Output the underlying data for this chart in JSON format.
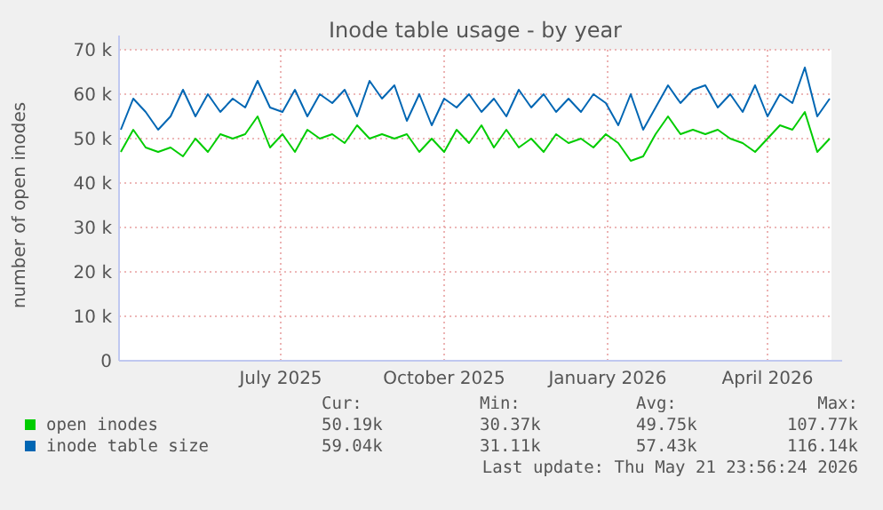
{
  "chart_data": {
    "type": "line",
    "title": "Inode table usage - by year",
    "ylabel": "number of open inodes",
    "x": [
      "2025-04-17",
      "2025-04-24",
      "2025-05-01",
      "2025-05-08",
      "2025-05-15",
      "2025-05-22",
      "2025-05-29",
      "2025-06-05",
      "2025-06-12",
      "2025-06-19",
      "2025-06-26",
      "2025-07-03",
      "2025-07-10",
      "2025-07-17",
      "2025-07-24",
      "2025-07-31",
      "2025-08-07",
      "2025-08-14",
      "2025-08-21",
      "2025-08-28",
      "2025-09-04",
      "2025-09-11",
      "2025-09-18",
      "2025-09-25",
      "2025-10-02",
      "2025-10-09",
      "2025-10-16",
      "2025-10-23",
      "2025-10-30",
      "2025-11-06",
      "2025-11-13",
      "2025-11-20",
      "2025-11-27",
      "2025-12-04",
      "2025-12-11",
      "2025-12-18",
      "2025-12-25",
      "2026-01-01",
      "2026-01-08",
      "2026-01-15",
      "2026-01-22",
      "2026-01-29",
      "2026-02-05",
      "2026-02-12",
      "2026-02-19",
      "2026-02-26",
      "2026-03-05",
      "2026-03-12",
      "2026-03-19",
      "2026-03-26",
      "2026-04-02",
      "2026-04-09",
      "2026-04-16",
      "2026-04-23",
      "2026-04-30",
      "2026-05-07",
      "2026-05-14",
      "2026-05-21"
    ],
    "series": [
      {
        "name": "open inodes",
        "color": "#00cc00",
        "values": [
          47000,
          52000,
          48000,
          47000,
          48000,
          46000,
          50000,
          47000,
          51000,
          50000,
          51000,
          55000,
          48000,
          51000,
          47000,
          52000,
          50000,
          51000,
          49000,
          53000,
          50000,
          51000,
          50000,
          51000,
          47000,
          50000,
          47000,
          52000,
          49000,
          53000,
          48000,
          52000,
          48000,
          50000,
          47000,
          51000,
          49000,
          50000,
          48000,
          51000,
          49000,
          45000,
          46000,
          51000,
          55000,
          51000,
          52000,
          51000,
          52000,
          50000,
          49000,
          47000,
          50000,
          53000,
          52000,
          56000,
          47000,
          50000
        ]
      },
      {
        "name": "inode table size",
        "color": "#0066b3",
        "values": [
          52000,
          59000,
          56000,
          52000,
          55000,
          61000,
          55000,
          60000,
          56000,
          59000,
          57000,
          63000,
          57000,
          56000,
          61000,
          55000,
          60000,
          58000,
          61000,
          55000,
          63000,
          59000,
          62000,
          54000,
          60000,
          53000,
          59000,
          57000,
          60000,
          56000,
          59000,
          55000,
          61000,
          57000,
          60000,
          56000,
          59000,
          56000,
          60000,
          58000,
          53000,
          60000,
          52000,
          57000,
          62000,
          58000,
          61000,
          62000,
          57000,
          60000,
          56000,
          62000,
          55000,
          60000,
          58000,
          66000,
          55000,
          59000
        ]
      }
    ],
    "xlim": [
      "2025-04-16",
      "2026-05-22"
    ],
    "xticks": [
      {
        "value": "2025-07-16",
        "label": "July 2025"
      },
      {
        "value": "2025-10-16",
        "label": "October 2025"
      },
      {
        "value": "2026-01-16",
        "label": "January 2026"
      },
      {
        "value": "2026-04-16",
        "label": "April 2026"
      }
    ],
    "ylim": [
      0,
      70000
    ],
    "yticks": [
      0,
      {
        "value": 10000,
        "label": "10 k"
      },
      {
        "value": 20000,
        "label": "20 k"
      },
      {
        "value": 30000,
        "label": "30 k"
      },
      {
        "value": 40000,
        "label": "40 k"
      },
      {
        "value": 50000,
        "label": "50 k"
      },
      {
        "value": 60000,
        "label": "60 k"
      },
      {
        "value": 70000,
        "label": "70 k"
      }
    ],
    "grid": true,
    "legend": "bottom",
    "annotations": [
      "Cur:",
      "Min:",
      "Avg:",
      "Max:",
      "50.19k",
      "30.37k",
      "49.75k",
      "107.77k",
      "59.04k",
      "31.11k",
      "57.43k",
      "116.14k",
      "Last update: Thu May 21 23:56:24 2026"
    ]
  }
}
